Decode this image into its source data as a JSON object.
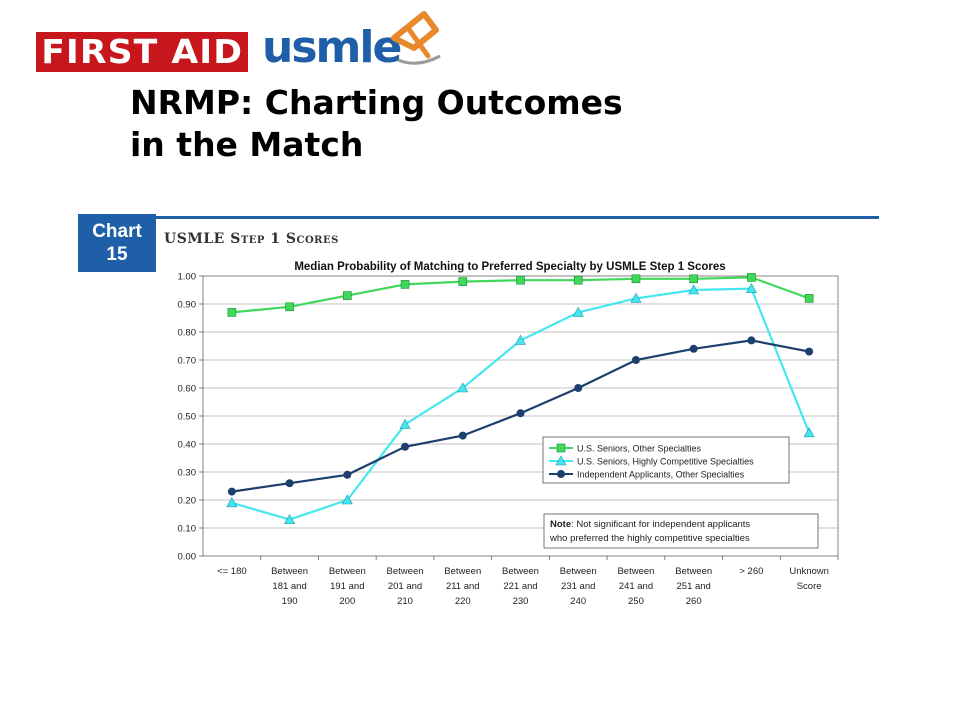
{
  "header": {
    "logo_first_aid": "FIRST AID",
    "logo_usmle": "usmle",
    "brand_colors": {
      "first_aid_red": "#c8161d",
      "usmle_blue": "#1f5fa8",
      "mark_orange": "#e8892b"
    }
  },
  "slide": {
    "title_line1": "NRMP: Charting Outcomes",
    "title_line2": "in the Match"
  },
  "chart_header": {
    "badge_line1": "Chart",
    "badge_line2": "15",
    "section": "USMLE Step 1 Scores",
    "accent_color": "#1f5fa8"
  },
  "chart_data": {
    "type": "line",
    "title": "Median Probability of Matching to Preferred Specialty by USMLE Step 1 Scores",
    "xlabel": "",
    "ylabel": "",
    "ylim": [
      0,
      1
    ],
    "y_ticks": [
      "0.00",
      "0.10",
      "0.20",
      "0.30",
      "0.40",
      "0.50",
      "0.60",
      "0.70",
      "0.80",
      "0.90",
      "1.00"
    ],
    "grid": true,
    "legend_position": "lower-right",
    "categories": [
      [
        "<= 180"
      ],
      [
        "Between",
        "181 and",
        "190"
      ],
      [
        "Between",
        "191 and",
        "200"
      ],
      [
        "Between",
        "201 and",
        "210"
      ],
      [
        "Between",
        "211 and",
        "220"
      ],
      [
        "Between",
        "221 and",
        "230"
      ],
      [
        "Between",
        "231 and",
        "240"
      ],
      [
        "Between",
        "241 and",
        "250"
      ],
      [
        "Between",
        "251 and",
        "260"
      ],
      [
        "> 260"
      ],
      [
        "Unknown",
        "Score"
      ]
    ],
    "series": [
      {
        "name": "U.S. Seniors, Other Specialties",
        "color": "#3fd85a",
        "marker": "square",
        "values": [
          0.87,
          0.89,
          0.93,
          0.97,
          0.98,
          0.985,
          0.985,
          0.99,
          0.99,
          0.995,
          0.92
        ]
      },
      {
        "name": "U.S. Seniors, Highly Competitive Specialties",
        "color": "#46e6f0",
        "marker": "triangle",
        "values": [
          0.19,
          0.13,
          0.2,
          0.47,
          0.6,
          0.77,
          0.87,
          0.92,
          0.95,
          0.955,
          0.44
        ]
      },
      {
        "name": "Independent Applicants, Other Specialties",
        "color": "#1c3f6e",
        "marker": "circle",
        "values": [
          0.23,
          0.26,
          0.29,
          0.39,
          0.43,
          0.51,
          0.6,
          0.7,
          0.74,
          0.77,
          0.73
        ]
      }
    ],
    "note": {
      "label": "Note",
      "line1": ": Not significant for independent applicants",
      "line2": "who preferred the highly competitive specialties"
    }
  }
}
